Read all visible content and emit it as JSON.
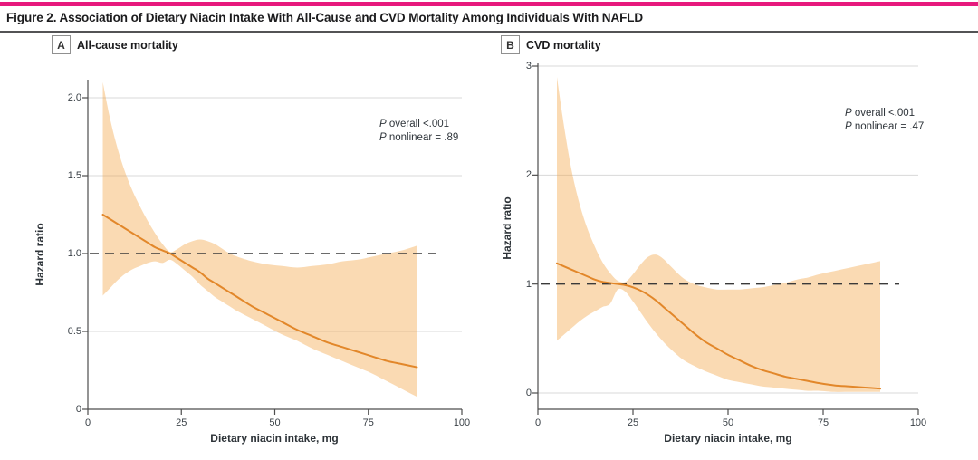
{
  "figure": {
    "title": "Figure 2. Association of Dietary Niacin Intake With All-Cause and CVD Mortality Among Individuals With NAFLD",
    "accent_color": "#E7197D"
  },
  "chart_data": [
    {
      "type": "line",
      "panel_letter": "A",
      "panel_title": "All-cause mortality",
      "xlabel": "Dietary niacin intake, mg",
      "ylabel": "Hazard ratio",
      "xlim": [
        0,
        100
      ],
      "ylim": [
        0,
        2.12
      ],
      "xticks": {
        "values": [
          0,
          25,
          50,
          75,
          100
        ],
        "labels": [
          "0",
          "25",
          "50",
          "75",
          "100"
        ]
      },
      "yticks": {
        "values": [
          0,
          0.5,
          1.0,
          1.5,
          2.0
        ],
        "labels": [
          "0",
          "0.5",
          "1.0",
          "1.5",
          "2.0"
        ]
      },
      "gridline_y_values": [
        0.5,
        1.5,
        2.0
      ],
      "reference_line": {
        "y": 1.0,
        "style": "dashed"
      },
      "annotation_lines": [
        "P overall <.001",
        "P nonlinear = .89"
      ],
      "legend": "none",
      "grid": "horizontal-only",
      "series": [
        {
          "name": "hazard-ratio-curve",
          "x": [
            4,
            6,
            8,
            10,
            12,
            14,
            16,
            18,
            20,
            22,
            24,
            26,
            28,
            30,
            32,
            34,
            36,
            38,
            40,
            44,
            48,
            52,
            56,
            60,
            64,
            68,
            72,
            76,
            80,
            84,
            88
          ],
          "y": [
            1.25,
            1.22,
            1.19,
            1.16,
            1.13,
            1.1,
            1.07,
            1.04,
            1.02,
            1.0,
            0.97,
            0.94,
            0.91,
            0.88,
            0.84,
            0.81,
            0.78,
            0.75,
            0.72,
            0.66,
            0.61,
            0.56,
            0.51,
            0.47,
            0.43,
            0.4,
            0.37,
            0.34,
            0.31,
            0.29,
            0.27
          ]
        },
        {
          "name": "ci-upper",
          "x": [
            4,
            6,
            8,
            10,
            12,
            14,
            16,
            18,
            20,
            22,
            24,
            26,
            28,
            30,
            32,
            34,
            36,
            38,
            40,
            44,
            48,
            52,
            56,
            60,
            64,
            68,
            72,
            76,
            80,
            84,
            88
          ],
          "y": [
            2.1,
            1.86,
            1.67,
            1.52,
            1.4,
            1.3,
            1.21,
            1.13,
            1.06,
            1.01,
            1.03,
            1.06,
            1.08,
            1.09,
            1.08,
            1.06,
            1.03,
            1.0,
            0.98,
            0.95,
            0.93,
            0.92,
            0.91,
            0.92,
            0.93,
            0.95,
            0.96,
            0.98,
            1.0,
            1.02,
            1.05
          ]
        },
        {
          "name": "ci-lower",
          "x": [
            4,
            6,
            8,
            10,
            12,
            14,
            16,
            18,
            20,
            22,
            24,
            26,
            28,
            30,
            32,
            34,
            36,
            38,
            40,
            44,
            48,
            52,
            56,
            60,
            64,
            68,
            72,
            76,
            80,
            84,
            88
          ],
          "y": [
            0.73,
            0.78,
            0.83,
            0.87,
            0.9,
            0.92,
            0.94,
            0.95,
            0.94,
            0.96,
            0.93,
            0.89,
            0.85,
            0.8,
            0.76,
            0.72,
            0.69,
            0.66,
            0.63,
            0.58,
            0.53,
            0.48,
            0.44,
            0.39,
            0.35,
            0.31,
            0.27,
            0.23,
            0.18,
            0.13,
            0.08
          ]
        }
      ],
      "colors": {
        "line": "#E2872A",
        "band_fill": "rgba(243,166,74,0.42)",
        "reference": "#3A3A3A",
        "grid": "#D8D8D8",
        "axis": "#4E4E4E"
      }
    },
    {
      "type": "line",
      "panel_letter": "B",
      "panel_title": "CVD mortality",
      "xlabel": "Dietary niacin intake, mg",
      "ylabel": "Hazard ratio",
      "xlim": [
        0,
        100
      ],
      "ylim": [
        0,
        3
      ],
      "xticks": {
        "values": [
          0,
          25,
          50,
          75,
          100
        ],
        "labels": [
          "0",
          "25",
          "50",
          "75",
          "100"
        ]
      },
      "yticks": {
        "values": [
          0,
          1,
          2,
          3
        ],
        "labels": [
          "0",
          "1",
          "2",
          "3"
        ]
      },
      "gridline_y_values": [
        0,
        2,
        3
      ],
      "reference_line": {
        "y": 1.0,
        "style": "dashed"
      },
      "annotation_lines": [
        "P overall <.001",
        "P nonlinear = .47"
      ],
      "legend": "none",
      "grid": "horizontal-only",
      "series": [
        {
          "name": "hazard-ratio-curve",
          "x": [
            5,
            7,
            9,
            11,
            13,
            15,
            17,
            19,
            21,
            23,
            25,
            27,
            29,
            31,
            33,
            35,
            38,
            41,
            44,
            47,
            50,
            53,
            56,
            59,
            62,
            65,
            68,
            71,
            74,
            78,
            82,
            86,
            90
          ],
          "y": [
            1.19,
            1.16,
            1.13,
            1.1,
            1.07,
            1.04,
            1.02,
            1.01,
            1.0,
            0.99,
            0.97,
            0.94,
            0.9,
            0.85,
            0.79,
            0.73,
            0.64,
            0.55,
            0.47,
            0.41,
            0.35,
            0.3,
            0.25,
            0.21,
            0.18,
            0.15,
            0.13,
            0.11,
            0.09,
            0.07,
            0.06,
            0.05,
            0.04
          ]
        },
        {
          "name": "ci-upper",
          "x": [
            5,
            7,
            9,
            11,
            13,
            15,
            17,
            19,
            21,
            23,
            25,
            27,
            29,
            31,
            33,
            35,
            38,
            41,
            44,
            47,
            50,
            53,
            56,
            59,
            62,
            65,
            68,
            71,
            74,
            78,
            82,
            86,
            90
          ],
          "y": [
            2.9,
            2.42,
            2.02,
            1.73,
            1.51,
            1.34,
            1.2,
            1.1,
            1.03,
            1.02,
            1.09,
            1.18,
            1.25,
            1.27,
            1.23,
            1.16,
            1.06,
            1.0,
            0.97,
            0.95,
            0.95,
            0.95,
            0.96,
            0.97,
            0.99,
            1.01,
            1.04,
            1.06,
            1.09,
            1.12,
            1.15,
            1.18,
            1.21
          ]
        },
        {
          "name": "ci-lower",
          "x": [
            5,
            7,
            9,
            11,
            13,
            15,
            17,
            19,
            21,
            23,
            25,
            27,
            29,
            31,
            33,
            35,
            38,
            41,
            44,
            47,
            50,
            53,
            56,
            59,
            62,
            65,
            68,
            71,
            74,
            78,
            82,
            86,
            90
          ],
          "y": [
            0.48,
            0.54,
            0.6,
            0.66,
            0.71,
            0.75,
            0.79,
            0.82,
            0.95,
            0.93,
            0.84,
            0.74,
            0.64,
            0.55,
            0.47,
            0.4,
            0.31,
            0.25,
            0.2,
            0.16,
            0.12,
            0.1,
            0.08,
            0.06,
            0.05,
            0.04,
            0.03,
            0.02,
            0.02,
            0.01,
            0.01,
            0.01,
            0.01
          ]
        }
      ],
      "colors": {
        "line": "#E2872A",
        "band_fill": "rgba(243,166,74,0.42)",
        "reference": "#3A3A3A",
        "grid": "#D8D8D8",
        "axis": "#4E4E4E"
      }
    }
  ]
}
